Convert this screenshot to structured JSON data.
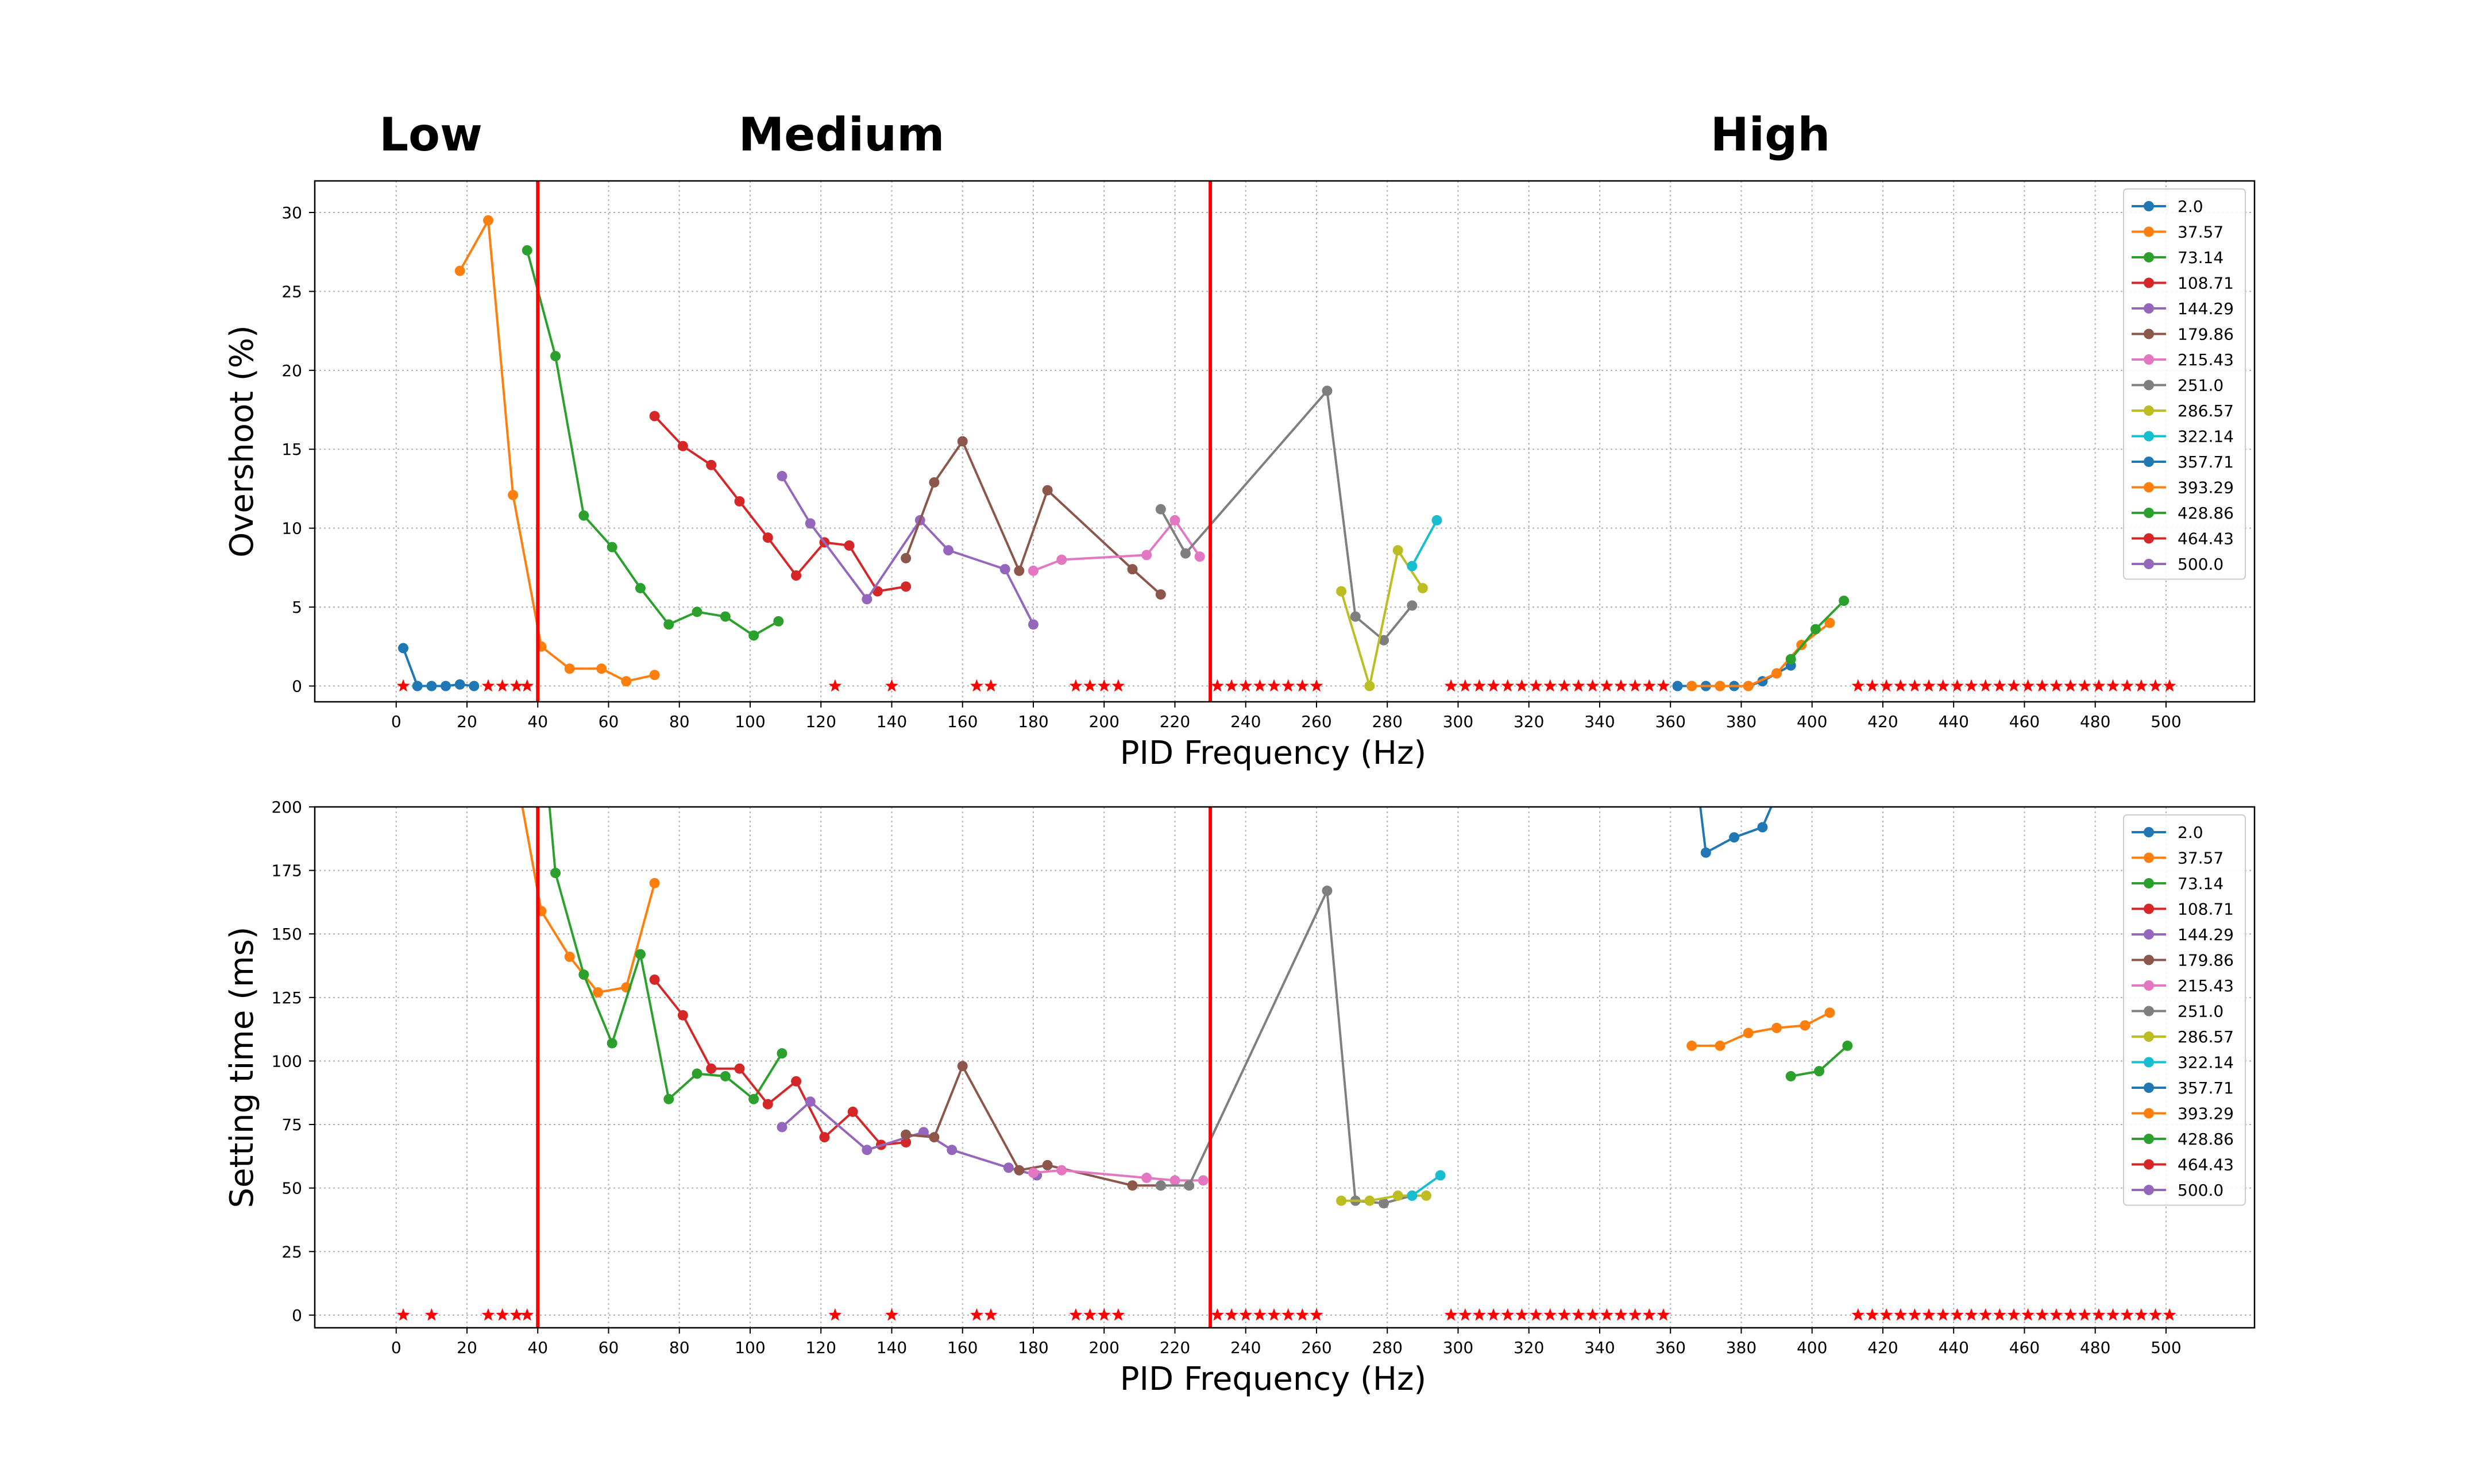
{
  "regions": [
    "Low",
    "Medium",
    "High"
  ],
  "boundaries": [
    40,
    230
  ],
  "colors": {
    "boundary": "#ff0000",
    "marker": "#ff0000",
    "palette": [
      "#1f77b4",
      "#ff7f0e",
      "#2ca02c",
      "#d62728",
      "#9467bd",
      "#8c564b",
      "#e377c2",
      "#7f7f7f",
      "#bcbd22",
      "#17becf"
    ]
  },
  "chart_data": [
    {
      "type": "line",
      "xlabel": "PID Frequency (Hz)",
      "ylabel": "Overshoot (%)",
      "xlim": [
        -23,
        525
      ],
      "ylim": [
        -1,
        32
      ],
      "xticks": [
        0,
        20,
        40,
        60,
        80,
        100,
        120,
        140,
        160,
        180,
        200,
        220,
        240,
        260,
        280,
        300,
        320,
        340,
        360,
        380,
        400,
        420,
        440,
        460,
        480,
        500
      ],
      "yticks": [
        0,
        5,
        10,
        15,
        20,
        25,
        30
      ],
      "grid": true,
      "legend": "top-right",
      "series": [
        {
          "name": "2.0",
          "x": [
            2,
            6,
            10,
            14,
            18,
            22
          ],
          "y": [
            2.4,
            0,
            0,
            0,
            0.1,
            0
          ]
        },
        {
          "name": "37.57",
          "x": [
            18,
            26,
            33,
            41,
            49,
            58,
            65,
            73
          ],
          "y": [
            26.3,
            29.5,
            12.1,
            2.5,
            1.1,
            1.1,
            0.3,
            0.7
          ]
        },
        {
          "name": "73.14",
          "x": [
            37,
            45,
            53,
            61,
            69,
            77,
            85,
            93,
            101,
            108
          ],
          "y": [
            27.6,
            20.9,
            10.8,
            8.8,
            6.2,
            3.9,
            4.7,
            4.4,
            3.2,
            4.1
          ]
        },
        {
          "name": "108.71",
          "x": [
            73,
            81,
            89,
            97,
            105,
            113,
            121,
            128,
            136,
            144
          ],
          "y": [
            17.1,
            15.2,
            14.0,
            11.7,
            9.4,
            7.0,
            9.1,
            8.9,
            6.0,
            6.3
          ]
        },
        {
          "name": "144.29",
          "x": [
            109,
            117,
            133,
            148,
            156,
            172,
            180
          ],
          "y": [
            13.3,
            10.3,
            5.5,
            10.5,
            8.6,
            7.4,
            3.9
          ]
        },
        {
          "name": "179.86",
          "x": [
            144,
            152,
            160,
            176,
            184,
            208,
            216
          ],
          "y": [
            8.1,
            12.9,
            15.5,
            7.3,
            12.4,
            7.4,
            5.8
          ]
        },
        {
          "name": "215.43",
          "x": [
            180,
            188,
            212,
            220,
            227
          ],
          "y": [
            7.3,
            8.0,
            8.3,
            10.5,
            8.2
          ]
        },
        {
          "name": "251.0",
          "x": [
            216,
            223,
            263,
            271,
            279,
            287
          ],
          "y": [
            11.2,
            8.4,
            18.7,
            4.4,
            2.9,
            5.1
          ]
        },
        {
          "name": "286.57",
          "x": [
            267,
            275,
            283,
            290
          ],
          "y": [
            6.0,
            0,
            8.6,
            6.2
          ]
        },
        {
          "name": "322.14",
          "x": [
            287,
            294
          ],
          "y": [
            7.6,
            10.5
          ]
        },
        {
          "name": "357.71",
          "x": [
            362,
            366,
            370,
            374,
            378,
            382,
            386,
            390,
            394
          ],
          "y": [
            0,
            0,
            0,
            0,
            0,
            0,
            0.3,
            0.8,
            1.3
          ]
        },
        {
          "name": "393.29",
          "x": [
            366,
            374,
            382,
            390,
            397,
            405
          ],
          "y": [
            0,
            0,
            0,
            0.8,
            2.6,
            4.0
          ]
        },
        {
          "name": "428.86",
          "x": [
            394,
            401,
            409
          ],
          "y": [
            1.7,
            3.6,
            5.4
          ]
        },
        {
          "name": "464.43",
          "x": [],
          "y": []
        },
        {
          "name": "500.0",
          "x": [],
          "y": []
        }
      ],
      "markers": {
        "x": [
          2,
          26,
          30,
          34,
          37,
          124,
          140,
          164,
          168,
          192,
          196,
          200,
          204,
          232,
          236,
          240,
          244,
          248,
          252,
          256,
          260,
          298,
          302,
          306,
          310,
          314,
          318,
          322,
          326,
          330,
          334,
          338,
          342,
          346,
          350,
          354,
          358,
          413,
          417,
          421,
          425,
          429,
          433,
          437,
          441,
          445,
          449,
          453,
          457,
          461,
          465,
          469,
          473,
          477,
          481,
          485,
          489,
          493,
          497,
          501
        ],
        "y": 0
      }
    },
    {
      "type": "line",
      "xlabel": "PID Frequency (Hz)",
      "ylabel": "Setting time (ms)",
      "xlim": [
        -23,
        525
      ],
      "ylim": [
        -5,
        200
      ],
      "xticks": [
        0,
        20,
        40,
        60,
        80,
        100,
        120,
        140,
        160,
        180,
        200,
        220,
        240,
        260,
        280,
        300,
        320,
        340,
        360,
        380,
        400,
        420,
        440,
        460,
        480,
        500
      ],
      "yticks": [
        0,
        25,
        50,
        75,
        100,
        125,
        150,
        175,
        200
      ],
      "grid": true,
      "legend": "top-right",
      "series": [
        {
          "name": "2.0",
          "x": [],
          "y": []
        },
        {
          "name": "37.57",
          "x": [
            35,
            41,
            49,
            57,
            65,
            73
          ],
          "y": [
            205,
            159,
            141,
            127,
            129,
            170
          ]
        },
        {
          "name": "73.14",
          "x": [
            43,
            45,
            53,
            61,
            69,
            77,
            85,
            93,
            101,
            109
          ],
          "y": [
            205,
            174,
            134,
            107,
            142,
            85,
            95,
            94,
            85,
            103
          ]
        },
        {
          "name": "108.71",
          "x": [
            73,
            81,
            89,
            97,
            105,
            113,
            121,
            129,
            137,
            144
          ],
          "y": [
            132,
            118,
            97,
            97,
            83,
            92,
            70,
            80,
            67,
            68
          ]
        },
        {
          "name": "144.29",
          "x": [
            109,
            117,
            133,
            149,
            157,
            173,
            181
          ],
          "y": [
            74,
            84,
            65,
            72,
            65,
            58,
            55
          ]
        },
        {
          "name": "179.86",
          "x": [
            144,
            152,
            160,
            176,
            184,
            208,
            216
          ],
          "y": [
            71,
            70,
            98,
            57,
            59,
            51,
            51
          ]
        },
        {
          "name": "215.43",
          "x": [
            180,
            188,
            212,
            220,
            228
          ],
          "y": [
            56,
            57,
            54,
            53,
            53
          ]
        },
        {
          "name": "251.0",
          "x": [
            216,
            224,
            263,
            271,
            279,
            287
          ],
          "y": [
            51,
            51,
            167,
            45,
            44,
            47
          ]
        },
        {
          "name": "286.57",
          "x": [
            267,
            275,
            283,
            291
          ],
          "y": [
            45,
            45,
            47,
            47
          ]
        },
        {
          "name": "322.14",
          "x": [
            287,
            295
          ],
          "y": [
            47,
            55
          ]
        },
        {
          "name": "357.71",
          "x": [
            368,
            370,
            378,
            386,
            390
          ],
          "y": [
            205,
            182,
            188,
            192,
            205
          ]
        },
        {
          "name": "393.29",
          "x": [
            366,
            374,
            382,
            390,
            398,
            405
          ],
          "y": [
            106,
            106,
            111,
            113,
            114,
            119
          ]
        },
        {
          "name": "428.86",
          "x": [
            394,
            402,
            410
          ],
          "y": [
            94,
            96,
            106
          ]
        },
        {
          "name": "464.43",
          "x": [],
          "y": []
        },
        {
          "name": "500.0",
          "x": [],
          "y": []
        }
      ],
      "markers": {
        "x": [
          2,
          10,
          26,
          30,
          34,
          37,
          124,
          140,
          164,
          168,
          192,
          196,
          200,
          204,
          232,
          236,
          240,
          244,
          248,
          252,
          256,
          260,
          298,
          302,
          306,
          310,
          314,
          318,
          322,
          326,
          330,
          334,
          338,
          342,
          346,
          350,
          354,
          358,
          413,
          417,
          421,
          425,
          429,
          433,
          437,
          441,
          445,
          449,
          453,
          457,
          461,
          465,
          469,
          473,
          477,
          481,
          485,
          489,
          493,
          497,
          501
        ],
        "y": 0
      }
    }
  ]
}
